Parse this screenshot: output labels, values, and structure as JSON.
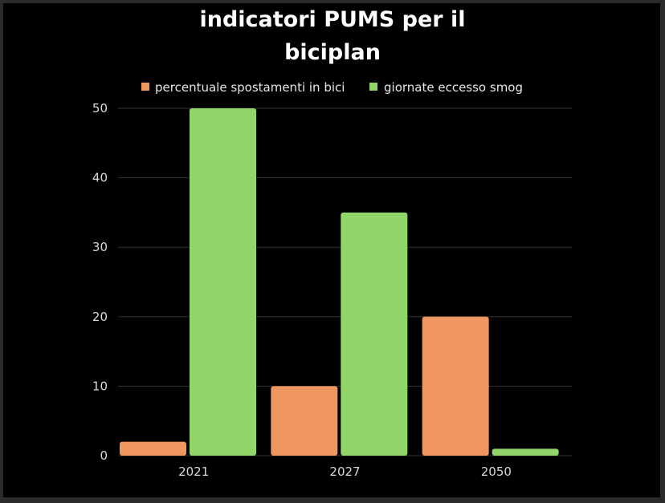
{
  "chart_data": {
    "type": "bar",
    "title_lines": [
      "indicatori PUMS per il",
      "biciplan"
    ],
    "categories": [
      "2021",
      "2027",
      "2050"
    ],
    "series": [
      {
        "name": "percentuale spostamenti in bici",
        "values": [
          2,
          10,
          20
        ],
        "color": "#f0965f"
      },
      {
        "name": "giornate eccesso smog",
        "values": [
          50,
          35,
          1
        ],
        "color": "#92d66a"
      }
    ],
    "ylim": [
      0,
      50
    ],
    "yticks": [
      "0",
      "10",
      "20",
      "30",
      "40",
      "50"
    ],
    "grid": true,
    "legend_position": "top",
    "background": "#000000"
  }
}
